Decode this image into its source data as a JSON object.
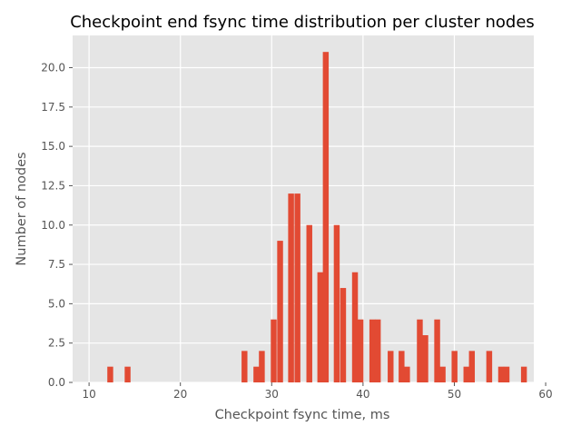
{
  "chart_data": {
    "type": "bar",
    "title": "Checkpoint end fsync time distribution per cluster nodes",
    "xlabel": "Checkpoint fsync time, ms",
    "ylabel": "Number of nodes",
    "xlim": [
      8.2,
      58.7
    ],
    "ylim": [
      0,
      22.05
    ],
    "xticks": [
      10,
      20,
      30,
      40,
      50,
      60
    ],
    "yticks": [
      0.0,
      2.5,
      5.0,
      7.5,
      10.0,
      12.5,
      15.0,
      17.5,
      20.0
    ],
    "ytick_labels": [
      "0.0",
      "2.5",
      "5.0",
      "7.5",
      "10.0",
      "12.5",
      "15.0",
      "17.5",
      "20.0"
    ],
    "grid": true,
    "style": "ggplot",
    "bar_color": "#E24A33",
    "bin_width": 0.64,
    "bins": [
      {
        "x": 12.0,
        "count": 1
      },
      {
        "x": 13.9,
        "count": 1
      },
      {
        "x": 26.7,
        "count": 2
      },
      {
        "x": 28.0,
        "count": 1
      },
      {
        "x": 28.6,
        "count": 2
      },
      {
        "x": 29.9,
        "count": 4
      },
      {
        "x": 30.6,
        "count": 9
      },
      {
        "x": 31.8,
        "count": 12
      },
      {
        "x": 32.5,
        "count": 12
      },
      {
        "x": 33.8,
        "count": 10
      },
      {
        "x": 35.0,
        "count": 7
      },
      {
        "x": 35.6,
        "count": 21
      },
      {
        "x": 36.8,
        "count": 10
      },
      {
        "x": 37.5,
        "count": 6
      },
      {
        "x": 38.8,
        "count": 7
      },
      {
        "x": 39.4,
        "count": 4
      },
      {
        "x": 40.7,
        "count": 4
      },
      {
        "x": 41.3,
        "count": 4
      },
      {
        "x": 42.7,
        "count": 2
      },
      {
        "x": 43.9,
        "count": 2
      },
      {
        "x": 44.5,
        "count": 1
      },
      {
        "x": 45.9,
        "count": 4
      },
      {
        "x": 46.5,
        "count": 3
      },
      {
        "x": 47.8,
        "count": 4
      },
      {
        "x": 48.4,
        "count": 1
      },
      {
        "x": 49.7,
        "count": 2
      },
      {
        "x": 51.0,
        "count": 1
      },
      {
        "x": 51.6,
        "count": 2
      },
      {
        "x": 53.5,
        "count": 2
      },
      {
        "x": 54.8,
        "count": 1
      },
      {
        "x": 55.4,
        "count": 1
      },
      {
        "x": 57.3,
        "count": 1
      }
    ]
  }
}
